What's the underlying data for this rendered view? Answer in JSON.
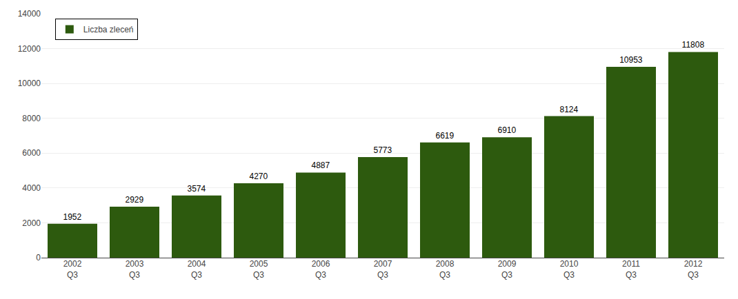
{
  "chart_data": {
    "type": "bar",
    "categories": [
      "2002\nQ3",
      "2003\nQ3",
      "2004\nQ3",
      "2005\nQ3",
      "2006\nQ3",
      "2007\nQ3",
      "2008\nQ3",
      "2009\nQ3",
      "2010\nQ3",
      "2011\nQ3",
      "2012\nQ3"
    ],
    "series": [
      {
        "name": "Liczba zleceń",
        "color": "#2d5a0e",
        "values": [
          1952,
          2929,
          3574,
          4270,
          4887,
          5773,
          6619,
          6910,
          8124,
          10953,
          11808
        ]
      }
    ],
    "ylim": [
      0,
      14000
    ],
    "yticks": [
      0,
      2000,
      4000,
      6000,
      8000,
      10000,
      12000,
      14000
    ],
    "grid": true,
    "legend": "upper left",
    "data_labels": true
  }
}
